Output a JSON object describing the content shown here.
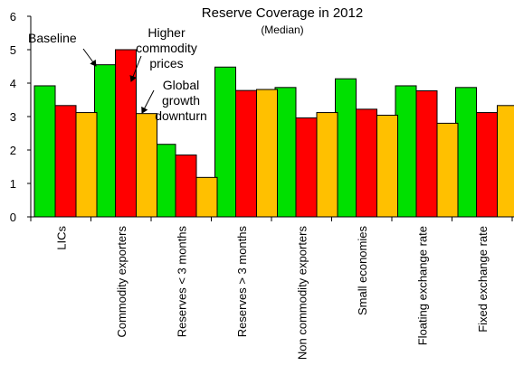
{
  "chart_data": {
    "type": "bar",
    "title": "Reserve Coverage  in 2012",
    "subtitle": "(Median)",
    "categories": [
      "LICs",
      "Commodity exporters",
      "Reserves < 3 months",
      "Reserves > 3 months",
      "Non commodity exporters",
      "Small economies",
      "Floating exchange rate",
      "Fixed exchange rate"
    ],
    "series": [
      {
        "name": "Baseline",
        "color": "#00e000",
        "values": [
          3.92,
          4.55,
          2.17,
          4.48,
          3.87,
          4.13,
          3.92,
          3.87
        ]
      },
      {
        "name": "Higher commodity prices",
        "color": "#ff0000",
        "values": [
          3.33,
          5.0,
          1.85,
          3.78,
          2.96,
          3.22,
          3.77,
          3.12
        ]
      },
      {
        "name": "Global growth downturn",
        "color": "#ffc000",
        "values": [
          3.12,
          3.09,
          1.18,
          3.81,
          3.12,
          3.04,
          2.8,
          3.33
        ]
      }
    ],
    "annotations": {
      "baseline": "Baseline",
      "higher_line1": "Higher",
      "higher_line2": "commodity",
      "higher_line3": "prices",
      "global_line1": "Global",
      "global_line2": "growth",
      "global_line3": "downturn"
    },
    "ylim": [
      0,
      6
    ],
    "yticks": [
      0,
      1,
      2,
      3,
      4,
      5,
      6
    ],
    "grid": false,
    "legend": "none"
  }
}
